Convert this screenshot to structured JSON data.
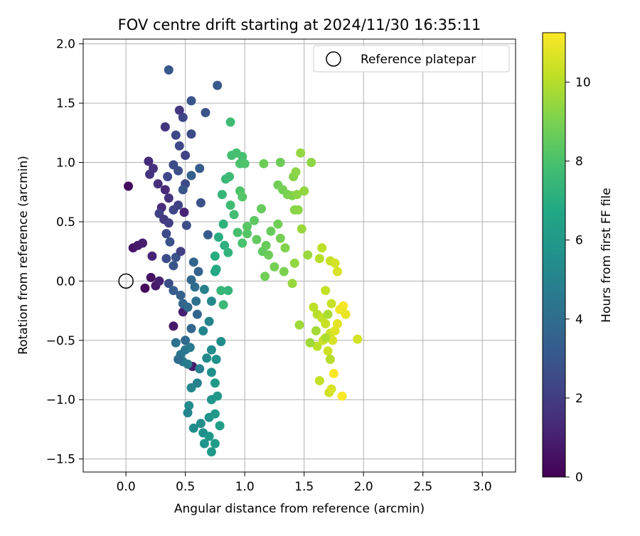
{
  "chart_data": {
    "type": "scatter",
    "title": "FOV centre drift starting at 2024/11/30 16:35:11",
    "xlabel": "Angular distance from reference (arcmin)",
    "ylabel": "Rotation from reference (arcmin)",
    "xlim": [
      -0.36,
      3.28
    ],
    "ylim": [
      -1.61,
      2.04
    ],
    "xticks": [
      0.0,
      0.5,
      1.0,
      1.5,
      2.0,
      2.5,
      3.0
    ],
    "xtick_labels": [
      "0.0",
      "0.5",
      "1.0",
      "1.5",
      "2.0",
      "2.5",
      "3.0"
    ],
    "yticks": [
      -1.5,
      -1.0,
      -0.5,
      0.0,
      0.5,
      1.0,
      1.5,
      2.0
    ],
    "ytick_labels": [
      "−1.5",
      "−1.0",
      "−0.5",
      "0.0",
      "0.5",
      "1.0",
      "1.5",
      "2.0"
    ],
    "grid": true,
    "legend": {
      "placement": "upper right",
      "entries": [
        {
          "label": "Reference platepar",
          "marker": "open-circle",
          "color": "#000000"
        }
      ]
    },
    "reference_point": {
      "label": "Reference platepar",
      "x": 0.0,
      "y": 0.0
    },
    "colorbar": {
      "label": "Hours from first FF file",
      "colormap": "viridis",
      "range": [
        0,
        11.25
      ],
      "ticks": [
        0,
        2,
        4,
        6,
        8,
        10
      ],
      "tick_labels": [
        "0",
        "2",
        "4",
        "6",
        "8",
        "10"
      ]
    },
    "series": [
      {
        "color_by": "hours",
        "columns": [
          "x",
          "y",
          "hours"
        ],
        "points": [
          [
            0.02,
            0.8,
            0.3
          ],
          [
            0.06,
            0.28,
            0.6
          ],
          [
            0.1,
            0.3,
            0.8
          ],
          [
            0.14,
            0.32,
            0.9
          ],
          [
            0.16,
            -0.06,
            0.3
          ],
          [
            0.21,
            0.03,
            0.5
          ],
          [
            0.25,
            -0.04,
            0.8
          ],
          [
            0.28,
            0.0,
            1.0
          ],
          [
            0.22,
            0.21,
            1.1
          ],
          [
            0.4,
            -0.38,
            0.8
          ],
          [
            0.48,
            -0.26,
            1.0
          ],
          [
            0.56,
            -0.72,
            0.9
          ],
          [
            0.49,
            0.58,
            1.1
          ],
          [
            0.19,
            1.01,
            1.4
          ],
          [
            0.23,
            0.95,
            1.6
          ],
          [
            0.2,
            0.9,
            1.7
          ],
          [
            0.27,
            0.82,
            1.5
          ],
          [
            0.33,
            0.77,
            1.3
          ],
          [
            0.36,
            0.7,
            1.6
          ],
          [
            0.3,
            0.62,
            1.4
          ],
          [
            0.4,
            0.6,
            2.3
          ],
          [
            0.28,
            0.57,
            2.1
          ],
          [
            0.32,
            0.52,
            1.9
          ],
          [
            0.36,
            0.49,
            2.0
          ],
          [
            0.44,
            0.64,
            2.2
          ],
          [
            0.5,
            0.82,
            2.5
          ],
          [
            0.35,
            0.88,
            2.4
          ],
          [
            0.4,
            0.98,
            2.6
          ],
          [
            0.44,
            0.93,
            2.7
          ],
          [
            0.5,
            1.06,
            2.2
          ],
          [
            0.45,
            1.14,
            2.4
          ],
          [
            0.55,
            1.24,
            2.6
          ],
          [
            0.42,
            1.23,
            2.5
          ],
          [
            0.33,
            1.3,
            1.7
          ],
          [
            0.48,
            1.38,
            2.3
          ],
          [
            0.45,
            1.44,
            1.8
          ],
          [
            0.55,
            1.52,
            2.9
          ],
          [
            0.36,
            1.78,
            3.1
          ],
          [
            0.67,
            1.42,
            2.9
          ],
          [
            0.77,
            1.65,
            3.2
          ],
          [
            0.62,
            0.95,
            3.3
          ],
          [
            0.55,
            0.89,
            3.4
          ],
          [
            0.48,
            0.77,
            3.0
          ],
          [
            0.34,
            0.4,
            2.5
          ],
          [
            0.37,
            0.33,
            2.8
          ],
          [
            0.42,
            0.2,
            2.9
          ],
          [
            0.34,
            0.19,
            2.6
          ],
          [
            0.4,
            0.13,
            3.0
          ],
          [
            0.46,
            0.25,
            2.1
          ],
          [
            0.51,
            0.47,
            2.7
          ],
          [
            0.63,
            0.66,
            2.8
          ],
          [
            0.69,
            0.39,
            3.2
          ],
          [
            0.57,
            0.16,
            3.6
          ],
          [
            0.61,
            0.08,
            3.5
          ],
          [
            0.55,
            0.01,
            3.8
          ],
          [
            0.36,
            -0.02,
            2.7
          ],
          [
            0.4,
            -0.08,
            3.3
          ],
          [
            0.46,
            -0.12,
            3.5
          ],
          [
            0.48,
            -0.19,
            3.7
          ],
          [
            0.52,
            -0.22,
            3.9
          ],
          [
            0.58,
            -0.05,
            4.0
          ],
          [
            0.59,
            -0.17,
            4.1
          ],
          [
            0.6,
            -0.28,
            3.6
          ],
          [
            0.55,
            -0.4,
            3.7
          ],
          [
            0.5,
            -0.5,
            3.8
          ],
          [
            0.42,
            -0.52,
            4.2
          ],
          [
            0.46,
            -0.62,
            4.3
          ],
          [
            0.5,
            -0.58,
            4.4
          ],
          [
            0.54,
            -0.56,
            4.6
          ],
          [
            0.48,
            -0.68,
            4.5
          ],
          [
            0.52,
            -0.7,
            4.7
          ],
          [
            0.44,
            -0.66,
            4.0
          ],
          [
            0.6,
            -0.86,
            4.9
          ],
          [
            0.62,
            -0.74,
            4.8
          ],
          [
            0.55,
            -0.9,
            5.1
          ],
          [
            0.53,
            -1.05,
            5.3
          ],
          [
            0.52,
            -1.11,
            5.1
          ],
          [
            0.57,
            -1.24,
            5.4
          ],
          [
            0.63,
            -1.2,
            5.5
          ],
          [
            0.65,
            -1.28,
            5.6
          ],
          [
            0.66,
            -1.37,
            5.8
          ],
          [
            0.7,
            -1.31,
            5.9
          ],
          [
            0.72,
            -1.44,
            6.0
          ],
          [
            0.75,
            -1.37,
            6.1
          ],
          [
            0.7,
            -1.15,
            5.7
          ],
          [
            0.75,
            -1.12,
            6.0
          ],
          [
            0.79,
            -1.22,
            6.2
          ],
          [
            0.72,
            -1.0,
            5.8
          ],
          [
            0.77,
            -0.97,
            5.9
          ],
          [
            0.75,
            -0.86,
            6.0
          ],
          [
            0.72,
            -0.77,
            5.6
          ],
          [
            0.68,
            -0.65,
            5.3
          ],
          [
            0.72,
            -0.58,
            5.4
          ],
          [
            0.76,
            -0.66,
            5.7
          ],
          [
            0.8,
            -0.51,
            5.5
          ],
          [
            0.65,
            -0.42,
            5.1
          ],
          [
            0.7,
            -0.34,
            5.0
          ],
          [
            0.72,
            -0.17,
            5.2
          ],
          [
            0.66,
            -0.07,
            4.9
          ],
          [
            0.75,
            0.08,
            6.6
          ],
          [
            0.76,
            0.1,
            6.8
          ],
          [
            0.75,
            0.21,
            6.9
          ],
          [
            0.78,
            0.37,
            7.0
          ],
          [
            0.82,
            0.48,
            7.2
          ],
          [
            0.83,
            0.3,
            7.1
          ],
          [
            0.86,
            0.24,
            7.3
          ],
          [
            0.8,
            -0.08,
            7.5
          ],
          [
            0.82,
            -0.2,
            7.6
          ],
          [
            0.86,
            -0.08,
            7.4
          ],
          [
            0.81,
            0.73,
            7.4
          ],
          [
            0.84,
            0.86,
            7.5
          ],
          [
            0.87,
            0.88,
            7.6
          ],
          [
            0.88,
            0.64,
            7.7
          ],
          [
            0.91,
            0.56,
            7.8
          ],
          [
            0.88,
            1.34,
            7.7
          ],
          [
            0.89,
            1.06,
            7.8
          ],
          [
            0.93,
            1.08,
            7.9
          ],
          [
            0.96,
            0.99,
            8.0
          ],
          [
            0.98,
            1.05,
            7.9
          ],
          [
            0.96,
            0.76,
            8.1
          ],
          [
            0.98,
            0.71,
            8.2
          ],
          [
            1.0,
            0.99,
            8.1
          ],
          [
            0.94,
            0.41,
            7.9
          ],
          [
            0.98,
            0.32,
            8.0
          ],
          [
            1.02,
            0.4,
            8.2
          ],
          [
            1.02,
            0.46,
            8.3
          ],
          [
            1.08,
            0.51,
            8.4
          ],
          [
            1.1,
            0.35,
            8.5
          ],
          [
            1.14,
            0.61,
            8.6
          ],
          [
            1.16,
            0.99,
            8.7
          ],
          [
            1.15,
            0.25,
            8.5
          ],
          [
            1.18,
            0.3,
            8.6
          ],
          [
            1.2,
            0.22,
            8.7
          ],
          [
            1.17,
            0.04,
            8.8
          ],
          [
            1.25,
            0.12,
            8.9
          ],
          [
            1.22,
            0.42,
            8.6
          ],
          [
            1.28,
            0.48,
            8.8
          ],
          [
            1.3,
            0.36,
            8.9
          ],
          [
            1.33,
            0.08,
            9.0
          ],
          [
            1.34,
            0.28,
            9.1
          ],
          [
            1.28,
            0.81,
            8.8
          ],
          [
            1.32,
            0.77,
            8.9
          ],
          [
            1.36,
            0.73,
            9.0
          ],
          [
            1.3,
            1.0,
            8.7
          ],
          [
            1.4,
            0.72,
            9.1
          ],
          [
            1.42,
            0.6,
            9.2
          ],
          [
            1.45,
            0.6,
            9.3
          ],
          [
            1.41,
            0.88,
            9.2
          ],
          [
            1.43,
            0.92,
            9.3
          ],
          [
            1.47,
            1.08,
            9.4
          ],
          [
            1.44,
            0.73,
            9.3
          ],
          [
            1.5,
            0.76,
            9.4
          ],
          [
            1.48,
            0.44,
            9.5
          ],
          [
            1.56,
            1.0,
            9.3
          ],
          [
            1.53,
            0.22,
            9.5
          ],
          [
            1.42,
            0.15,
            9.4
          ],
          [
            1.46,
            -0.37,
            9.6
          ],
          [
            1.4,
            -0.02,
            9.5
          ],
          [
            1.65,
            0.28,
            10.1
          ],
          [
            1.63,
            0.19,
            10.0
          ],
          [
            1.72,
            0.17,
            10.3
          ],
          [
            1.76,
            0.15,
            10.5
          ],
          [
            1.78,
            0.08,
            10.6
          ],
          [
            1.68,
            -0.08,
            10.2
          ],
          [
            1.73,
            -0.19,
            10.3
          ],
          [
            1.58,
            -0.22,
            10.1
          ],
          [
            1.61,
            -0.28,
            10.0
          ],
          [
            1.65,
            -0.31,
            10.2
          ],
          [
            1.68,
            -0.36,
            10.3
          ],
          [
            1.72,
            -0.44,
            10.4
          ],
          [
            1.66,
            -0.5,
            10.5
          ],
          [
            1.61,
            -0.55,
            10.1
          ],
          [
            1.7,
            -0.59,
            10.4
          ],
          [
            1.74,
            -0.5,
            10.6
          ],
          [
            1.76,
            -0.42,
            10.7
          ],
          [
            1.78,
            -0.36,
            10.8
          ],
          [
            1.83,
            -0.21,
            11.1
          ],
          [
            1.8,
            -0.24,
            11.0
          ],
          [
            1.85,
            -0.28,
            10.9
          ],
          [
            1.95,
            -0.49,
            10.5
          ],
          [
            1.63,
            -0.84,
            10.2
          ],
          [
            1.71,
            -0.94,
            10.4
          ],
          [
            1.75,
            -0.78,
            11.2
          ],
          [
            1.73,
            -0.91,
            10.6
          ],
          [
            1.82,
            -0.97,
            11.2
          ],
          [
            1.72,
            -0.66,
            10.0
          ],
          [
            1.68,
            -0.48,
            9.9
          ],
          [
            1.7,
            -0.28,
            9.8
          ],
          [
            1.6,
            -0.42,
            9.7
          ],
          [
            1.55,
            -0.52,
            9.6
          ]
        ]
      }
    ]
  }
}
